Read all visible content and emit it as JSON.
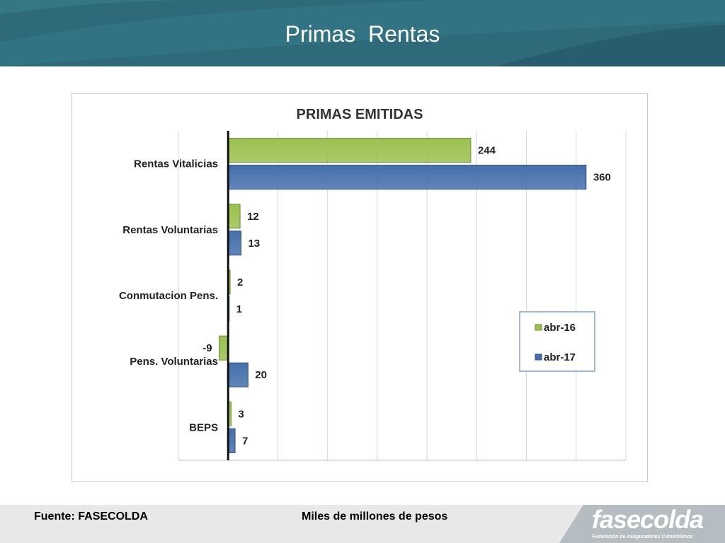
{
  "header": {
    "title": "Primas  Rentas"
  },
  "footer": {
    "source": "Fuente: FASECOLDA",
    "units": "Miles de millones de pesos",
    "logo": {
      "name": "fasecolda",
      "subtitle": "Federación de Aseguradores Colombianos"
    }
  },
  "colors": {
    "header_bg": "#2e6a79",
    "green": "#9bc150",
    "blue": "#4470ab",
    "frame": "#b9d3e6"
  },
  "chart_data": {
    "type": "bar",
    "orientation": "horizontal",
    "title": "PRIMAS EMITIDAS",
    "categories": [
      "Rentas Vitalicias",
      "Rentas Voluntarias",
      "Conmutacion Pens.",
      "Pens. Voluntarias",
      "BEPS"
    ],
    "series": [
      {
        "name": "abr-16",
        "color": "#9bc150",
        "values": [
          244,
          12,
          2,
          -9,
          3
        ]
      },
      {
        "name": "abr-17",
        "color": "#4470ab",
        "values": [
          360,
          13,
          1,
          20,
          7
        ]
      }
    ],
    "xlim": [
      -50,
      400
    ],
    "grid": true,
    "legend": "right"
  }
}
